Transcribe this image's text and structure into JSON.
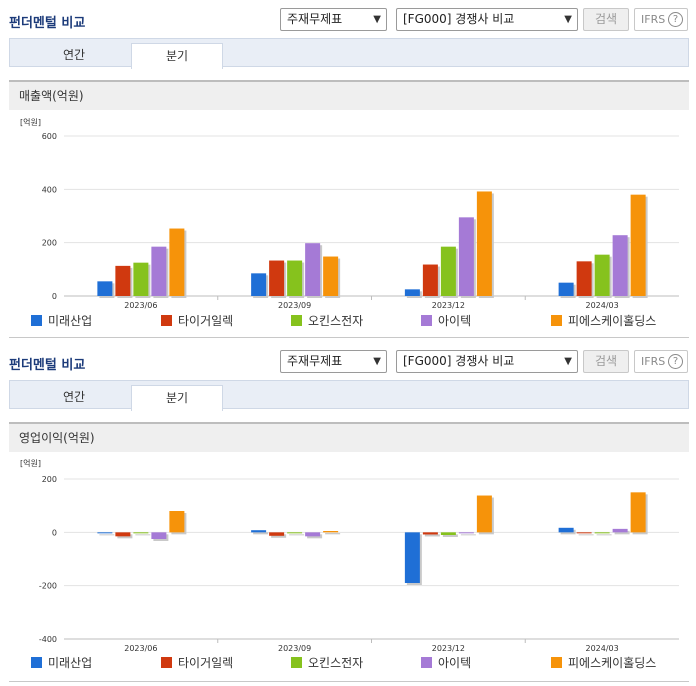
{
  "panels": [
    {
      "title": "펀더멘털 비교",
      "select1": "주재무제표",
      "select2": "[FG000] 경쟁사 비교",
      "search_label": "검색",
      "ifrs_label": "IFRS",
      "help_glyph": "?",
      "tabs": [
        "연간",
        "분기"
      ],
      "active_tab": "분기",
      "section": "매출액(억원)"
    },
    {
      "title": "펀더멘털 비교",
      "select1": "주재무제표",
      "select2": "[FG000] 경쟁사 비교",
      "search_label": "검색",
      "ifrs_label": "IFRS",
      "help_glyph": "?",
      "tabs": [
        "연간",
        "분기"
      ],
      "active_tab": "분기",
      "section": "영업이익(억원)"
    }
  ],
  "colors": {
    "미래산업": "#1f6fd6",
    "타이거일렉": "#d0390f",
    "오킨스전자": "#86c21d",
    "아이텍": "#a57ad6",
    "피에스케이홀딩스": "#f6930a"
  },
  "chart_data": [
    {
      "type": "bar",
      "unit_label": "[억원]",
      "categories": [
        "2023/06",
        "2023/09",
        "2023/12",
        "2024/03"
      ],
      "ylim": [
        0,
        600
      ],
      "yticks": [
        0,
        200,
        400,
        600
      ],
      "grid": true,
      "legend_position": "bottom",
      "series": [
        {
          "name": "미래산업",
          "values": [
            55,
            85,
            25,
            50
          ]
        },
        {
          "name": "타이거일렉",
          "values": [
            113,
            133,
            118,
            130
          ]
        },
        {
          "name": "오킨스전자",
          "values": [
            125,
            133,
            185,
            155
          ]
        },
        {
          "name": "아이텍",
          "values": [
            185,
            198,
            295,
            228
          ]
        },
        {
          "name": "피에스케이홀딩스",
          "values": [
            253,
            148,
            392,
            380
          ]
        }
      ]
    },
    {
      "type": "bar",
      "unit_label": "[억원]",
      "categories": [
        "2023/06",
        "2023/09",
        "2023/12",
        "2024/03"
      ],
      "ylim": [
        -400,
        200
      ],
      "yticks": [
        -400,
        -200,
        0,
        200
      ],
      "grid": true,
      "legend_position": "bottom",
      "series": [
        {
          "name": "미래산업",
          "values": [
            -3,
            8,
            -190,
            17
          ]
        },
        {
          "name": "타이거일렉",
          "values": [
            -15,
            -13,
            -8,
            0
          ]
        },
        {
          "name": "오킨스전자",
          "values": [
            -2,
            -2,
            -10,
            -2
          ]
        },
        {
          "name": "아이텍",
          "values": [
            -25,
            -15,
            -3,
            13
          ]
        },
        {
          "name": "피에스케이홀딩스",
          "values": [
            80,
            5,
            138,
            150
          ]
        }
      ]
    }
  ]
}
